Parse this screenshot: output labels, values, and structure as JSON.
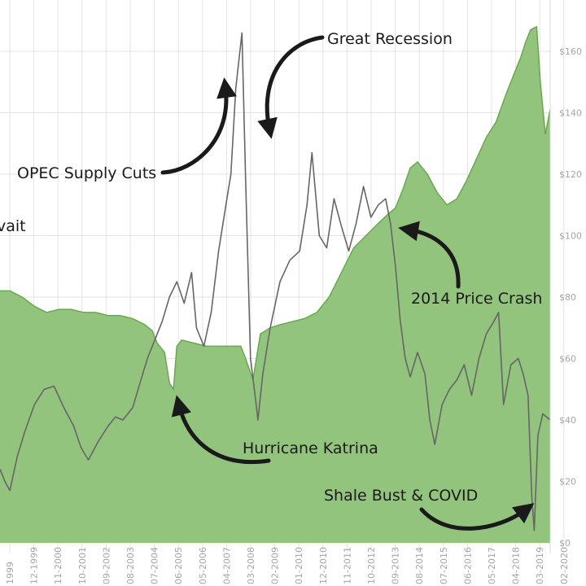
{
  "chart_data": {
    "type": "area",
    "title": "",
    "xlabel": "",
    "ylabel": "",
    "ylim": [
      0,
      170
    ],
    "grid": true,
    "y_tick_labels": [
      "$0",
      "$20",
      "$40",
      "$60",
      "$80",
      "$100",
      "$120",
      "$140",
      "$160"
    ],
    "y_tick_values": [
      0,
      20,
      40,
      60,
      80,
      100,
      120,
      140,
      160
    ],
    "x_tick_labels": [
      "1999",
      "12-1999",
      "11-2000",
      "10-2001",
      "09-2002",
      "08-2003",
      "07-2004",
      "06-2005",
      "05-2006",
      "04-2007",
      "03-2008",
      "02-2009",
      "01-2010",
      "12-2010",
      "11-2011",
      "10-2012",
      "09-2013",
      "08-2014",
      "07-2015",
      "06-2016",
      "05-2017",
      "04-2018",
      "03-2019",
      "02-2020"
    ],
    "series": [
      {
        "kind": "area",
        "color": "#93c47d",
        "edge_color": "#6aa84f",
        "x": [
          1998.6,
          1999.0,
          1999.5,
          2000.0,
          2000.5,
          2001.0,
          2001.5,
          2002.0,
          2002.5,
          2003.0,
          2003.5,
          2004.0,
          2004.5,
          2004.8,
          2005.0,
          2005.3,
          2005.5,
          2005.66,
          2005.8,
          2006.0,
          2006.5,
          2007.0,
          2007.5,
          2008.0,
          2008.4,
          2008.6,
          2008.9,
          2009.2,
          2009.6,
          2010.0,
          2010.5,
          2011.0,
          2011.5,
          2012.0,
          2012.5,
          2013.0,
          2013.5,
          2014.0,
          2014.4,
          2014.7,
          2015.0,
          2015.3,
          2015.6,
          2016.0,
          2016.4,
          2016.8,
          2017.2,
          2017.6,
          2018.0,
          2018.4,
          2018.8,
          2019.2,
          2019.5,
          2019.8,
          2020.0,
          2020.2,
          2020.45,
          2020.6,
          2020.8,
          2021.0
        ],
        "values": [
          82,
          82,
          80,
          77,
          75,
          76,
          76,
          75,
          75,
          74,
          74,
          73,
          71,
          69,
          65,
          62,
          52,
          50,
          64,
          66,
          65,
          64,
          64,
          64,
          64,
          60,
          53,
          68,
          70,
          71,
          72,
          73,
          75,
          80,
          88,
          96,
          100,
          104,
          107,
          109,
          115,
          122,
          124,
          120,
          114,
          110,
          112,
          118,
          125,
          132,
          137,
          146,
          152,
          158,
          163,
          167,
          168,
          150,
          133,
          141
        ]
      },
      {
        "kind": "line",
        "color": "#666666",
        "x": [
          1998.6,
          1998.8,
          1999.0,
          1999.3,
          1999.6,
          2000.0,
          2000.4,
          2000.8,
          2001.2,
          2001.6,
          2001.9,
          2002.2,
          2002.6,
          2003.0,
          2003.3,
          2003.6,
          2004.0,
          2004.3,
          2004.6,
          2004.9,
          2005.2,
          2005.5,
          2005.8,
          2006.1,
          2006.4,
          2006.6,
          2006.9,
          2007.2,
          2007.5,
          2007.8,
          2008.0,
          2008.2,
          2008.45,
          2008.6,
          2008.8,
          2009.0,
          2009.1,
          2009.3,
          2009.6,
          2010.0,
          2010.4,
          2010.8,
          2011.1,
          2011.3,
          2011.6,
          2011.9,
          2012.2,
          2012.5,
          2012.8,
          2013.1,
          2013.4,
          2013.7,
          2014.0,
          2014.3,
          2014.5,
          2014.7,
          2014.9,
          2015.1,
          2015.3,
          2015.6,
          2015.9,
          2016.1,
          2016.3,
          2016.6,
          2016.9,
          2017.2,
          2017.5,
          2017.8,
          2018.1,
          2018.4,
          2018.7,
          2018.9,
          2019.1,
          2019.4,
          2019.7,
          2019.9,
          2020.1,
          2020.25,
          2020.35,
          2020.5,
          2020.7,
          2021.0
        ],
        "values": [
          24,
          20,
          17,
          28,
          36,
          45,
          50,
          51,
          44,
          38,
          31,
          27,
          33,
          38,
          41,
          40,
          44,
          52,
          60,
          66,
          72,
          80,
          85,
          78,
          88,
          70,
          64,
          75,
          95,
          110,
          120,
          148,
          166,
          118,
          60,
          47,
          40,
          55,
          70,
          85,
          92,
          95,
          110,
          127,
          100,
          96,
          112,
          103,
          95,
          104,
          116,
          106,
          110,
          112,
          104,
          90,
          72,
          60,
          54,
          62,
          55,
          40,
          32,
          45,
          50,
          53,
          58,
          48,
          60,
          68,
          72,
          75,
          45,
          58,
          60,
          55,
          48,
          15,
          4,
          35,
          42,
          40
        ]
      }
    ],
    "annotations": [
      "Great Recession",
      "OPEC Supply Cuts",
      "2014 Price Crash",
      "Hurricane Katrina",
      "Shale Bust & COVID",
      "vait"
    ]
  }
}
